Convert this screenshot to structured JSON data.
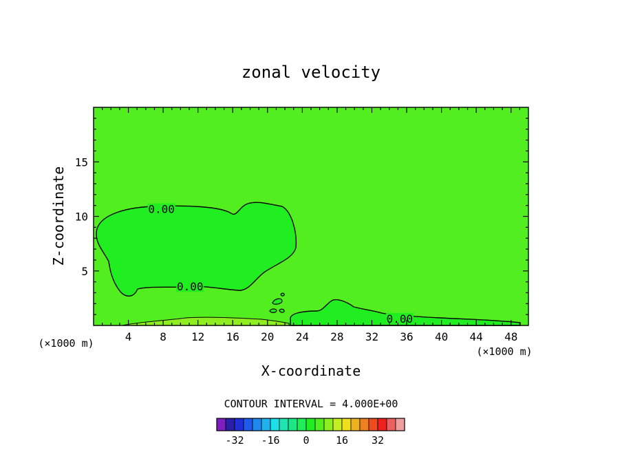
{
  "chart_data": {
    "type": "heatmap",
    "title": "zonal velocity",
    "xlabel": "X-coordinate",
    "ylabel": "Z-coordinate",
    "x_units": "(×1000 m)",
    "z_units": "(×1000 m)",
    "xlim": [
      0,
      50
    ],
    "ylim": [
      0,
      20
    ],
    "x_ticks": [
      4,
      8,
      12,
      16,
      20,
      24,
      28,
      32,
      36,
      40,
      44,
      48
    ],
    "y_ticks": [
      5,
      10,
      15
    ],
    "background_level": 4,
    "contours": [
      {
        "label": "0.00",
        "level": 0,
        "label_x": 7.8,
        "label_z": 10.5,
        "region": "upper-left blob"
      },
      {
        "label": "0.00",
        "level": 0,
        "label_x": 11.1,
        "label_z": 3.4,
        "region": "upper-left blob"
      },
      {
        "label": "0.00",
        "level": 0,
        "label_x": 35.2,
        "label_z": 0.45,
        "region": "near-surface right"
      }
    ],
    "contour_interval_text": "CONTOUR INTERVAL =  4.000E+00",
    "colorbar": {
      "colors": [
        "#7d1fbf",
        "#2a1fa8",
        "#1f2fd8",
        "#1f59ee",
        "#1f88ee",
        "#1fb2ee",
        "#1fdfe6",
        "#1fe6b0",
        "#1fe685",
        "#1fee58",
        "#20ee20",
        "#53ee1f",
        "#8fee1f",
        "#c4ee1f",
        "#eedf1f",
        "#eeb21f",
        "#ee801f",
        "#ee4b1f",
        "#ee1f1f",
        "#ee6060",
        "#ee9f9f"
      ],
      "tick_labels": [
        "-32",
        "-16",
        "0",
        "16",
        "32"
      ],
      "tick_values": [
        -32,
        -16,
        0,
        16,
        32
      ]
    },
    "grid": false
  }
}
